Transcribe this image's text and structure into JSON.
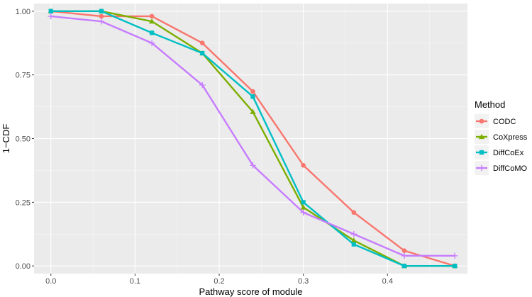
{
  "chart_data": {
    "type": "line",
    "xlabel": "Pathway score of module",
    "ylabel": "1−CDF",
    "xlim": [
      -0.02,
      0.495
    ],
    "ylim": [
      -0.03,
      1.03
    ],
    "x_ticks": [
      0.0,
      0.1,
      0.2,
      0.3,
      0.4
    ],
    "x_tick_labels": [
      "0.0",
      "0.1",
      "0.2",
      "0.3",
      "0.4"
    ],
    "y_ticks": [
      0.0,
      0.25,
      0.5,
      0.75,
      1.0
    ],
    "y_tick_labels": [
      "0.00",
      "0.25",
      "0.50",
      "0.75",
      "1.00"
    ],
    "grid": true,
    "legend": {
      "title": "Method",
      "position": "right"
    },
    "series": [
      {
        "name": "CODC",
        "color": "#F8766D",
        "marker": "circle",
        "x": [
          0.0,
          0.06,
          0.12,
          0.18,
          0.24,
          0.3,
          0.36,
          0.42,
          0.48
        ],
        "y": [
          1.0,
          0.98,
          0.98,
          0.875,
          0.685,
          0.395,
          0.21,
          0.06,
          0.0
        ]
      },
      {
        "name": "CoXpress",
        "color": "#7CAE00",
        "marker": "triangle",
        "x": [
          0.0,
          0.06,
          0.12,
          0.18,
          0.24,
          0.3,
          0.36,
          0.42,
          0.48
        ],
        "y": [
          1.0,
          1.0,
          0.96,
          0.835,
          0.605,
          0.23,
          0.1,
          0.0,
          0.0
        ]
      },
      {
        "name": "DiffCoEx",
        "color": "#00BFC4",
        "marker": "square",
        "x": [
          0.0,
          0.06,
          0.12,
          0.18,
          0.24,
          0.3,
          0.36,
          0.42,
          0.48
        ],
        "y": [
          1.0,
          1.0,
          0.915,
          0.835,
          0.665,
          0.25,
          0.085,
          0.0,
          0.0
        ]
      },
      {
        "name": "DiffCoMO",
        "color": "#C77CFF",
        "marker": "plus",
        "x": [
          0.0,
          0.06,
          0.12,
          0.18,
          0.24,
          0.3,
          0.36,
          0.42,
          0.48
        ],
        "y": [
          0.98,
          0.96,
          0.875,
          0.71,
          0.395,
          0.21,
          0.125,
          0.04,
          0.04
        ]
      }
    ]
  }
}
